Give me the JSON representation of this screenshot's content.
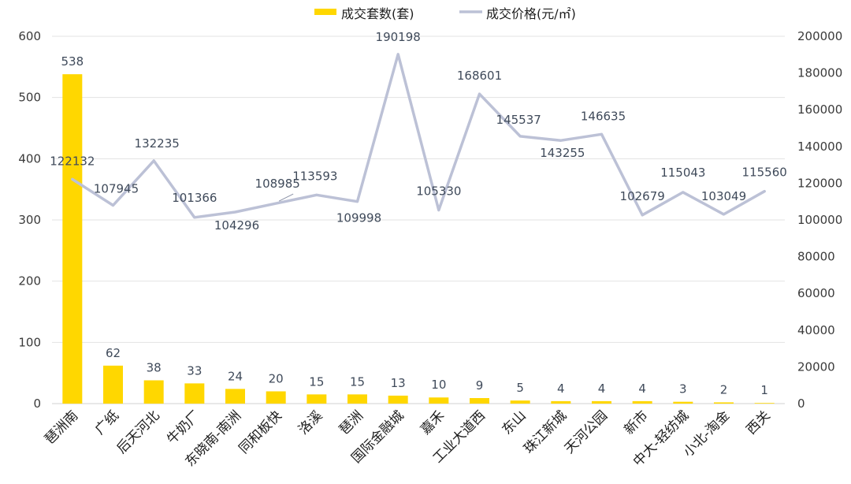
{
  "chart_data": {
    "type": "bar",
    "categories": [
      "琶洲南",
      "广纸",
      "后天河北",
      "牛奶厂",
      "东晓南-南洲",
      "同和板快",
      "洛溪",
      "琶洲",
      "国际金融城",
      "嘉禾",
      "工业大道西",
      "东山",
      "珠江新城",
      "天河公园",
      "新市",
      "中大-轻纺城",
      "小北-淘金",
      "西关"
    ],
    "series": [
      {
        "name": "成交套数(套)",
        "type": "bar",
        "axis": "left",
        "color": "#FFD700",
        "values": [
          538,
          62,
          38,
          33,
          24,
          20,
          15,
          15,
          13,
          10,
          9,
          5,
          4,
          4,
          4,
          3,
          2,
          1
        ]
      },
      {
        "name": "成交价格(元/㎡)",
        "type": "line",
        "axis": "right",
        "color": "#BCC1D6",
        "values": [
          122132,
          107945,
          132235,
          101366,
          104296,
          108985,
          113593,
          109998,
          190198,
          105330,
          168601,
          145537,
          143255,
          146635,
          102679,
          115043,
          103049,
          115560
        ]
      }
    ],
    "y_left": {
      "lim": [
        0,
        600
      ],
      "ticks": [
        "0",
        "100",
        "200",
        "300",
        "400",
        "500",
        "600"
      ]
    },
    "y_right": {
      "lim": [
        0,
        200000
      ],
      "ticks": [
        "0",
        "20000",
        "40000",
        "60000",
        "80000",
        "100000",
        "120000",
        "140000",
        "160000",
        "180000",
        "200000"
      ]
    },
    "grid": true,
    "legend": "top-center",
    "data_labels": true
  }
}
